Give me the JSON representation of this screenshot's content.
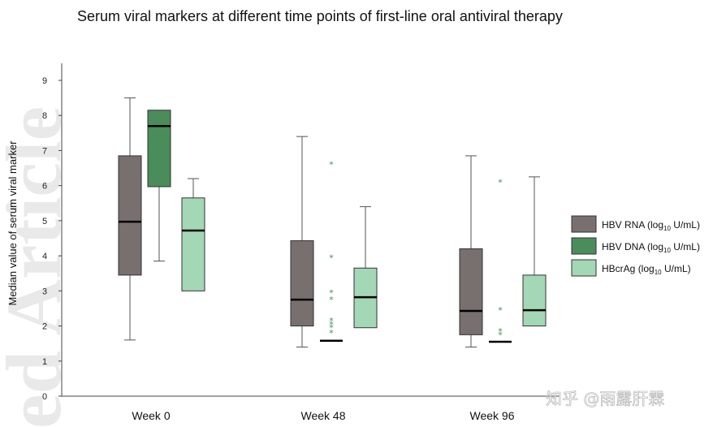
{
  "chart_data": {
    "type": "boxplot",
    "title": "Serum viral markers at different time points of first-line oral antiviral therapy",
    "ylabel": "Median value of serum viral marker",
    "xlabel": "",
    "ylim": [
      0,
      9
    ],
    "y_ticks": [
      "0",
      "1",
      "2",
      "3",
      "4",
      "5",
      "6",
      "7",
      "8",
      "9"
    ],
    "categories": [
      "Week 0",
      "Week 48",
      "Week 96"
    ],
    "legend_position": "right",
    "legend_unit": "(log",
    "legend_unit_sub": "10",
    "legend_unit_suffix": " U/mL)",
    "series": [
      {
        "name": "HBV RNA",
        "color": "#77706f",
        "boxes": [
          {
            "min": 1.6,
            "q1": 3.45,
            "median": 4.97,
            "q3": 6.85,
            "max": 8.5,
            "outliers": []
          },
          {
            "min": 1.4,
            "q1": 2.0,
            "median": 2.75,
            "q3": 4.43,
            "max": 7.4,
            "outliers": []
          },
          {
            "min": 1.4,
            "q1": 1.75,
            "median": 2.43,
            "q3": 4.2,
            "max": 6.85,
            "outliers": []
          }
        ]
      },
      {
        "name": "HBV DNA",
        "color": "#4a8c5a",
        "boxes": [
          {
            "min": 3.85,
            "q1": 5.97,
            "median": 7.7,
            "q3": 8.15,
            "max": 8.15,
            "outliers": []
          },
          {
            "min": 1.58,
            "q1": 1.58,
            "median": 1.58,
            "q3": 1.58,
            "max": 1.58,
            "outliers": [
              6.6,
              3.95,
              2.95,
              2.75,
              2.15,
              2.05,
              1.95,
              1.8
            ]
          },
          {
            "min": 1.55,
            "q1": 1.55,
            "median": 1.55,
            "q3": 1.55,
            "max": 1.55,
            "outliers": [
              6.1,
              2.45,
              1.85,
              1.75
            ]
          }
        ]
      },
      {
        "name": "HBcrAg",
        "color": "#a3d7b5",
        "boxes": [
          {
            "min": 3.0,
            "q1": 3.0,
            "median": 4.72,
            "q3": 5.65,
            "max": 6.2,
            "outliers": []
          },
          {
            "min": 1.95,
            "q1": 1.95,
            "median": 2.82,
            "q3": 3.65,
            "max": 5.4,
            "outliers": []
          },
          {
            "min": 2.0,
            "q1": 2.0,
            "median": 2.45,
            "q3": 3.45,
            "max": 6.25,
            "outliers": []
          }
        ]
      }
    ]
  },
  "watermark_text": "ed Article",
  "brand_text": "知乎 @雨露肝霖"
}
